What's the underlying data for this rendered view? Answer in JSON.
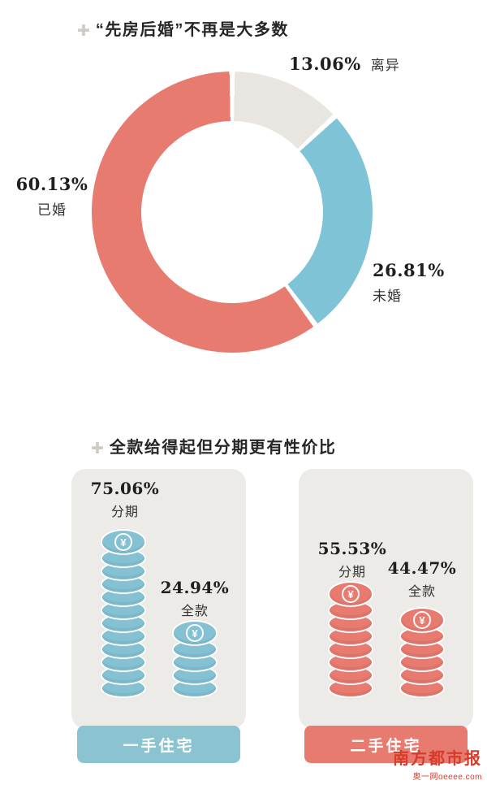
{
  "section1": {
    "plus": "✚",
    "title": "“先房后婚”不再是大多数",
    "segments": [
      {
        "label": "离异",
        "pct": "13.06%",
        "value": 13.06,
        "color": "#e9e6e2"
      },
      {
        "label": "未婚",
        "pct": "26.81%",
        "value": 26.81,
        "color": "#7fc3d6"
      },
      {
        "label": "已婚",
        "pct": "60.13%",
        "value": 60.13,
        "color": "#e87b70"
      }
    ]
  },
  "section2": {
    "plus": "✚",
    "title": "全款给得起但分期更有性价比",
    "coin_symbol": "¥",
    "panels": [
      {
        "label": "一手住宅",
        "color": "#8cc3d1",
        "stacks": [
          {
            "name": "分期",
            "pct": "75.06%",
            "coins": 11,
            "color": "#84c2d3"
          },
          {
            "name": "全款",
            "pct": "24.94%",
            "coins": 4,
            "color": "#84c2d3"
          }
        ]
      },
      {
        "label": "二手住宅",
        "color": "#e87b70",
        "stacks": [
          {
            "name": "分期",
            "pct": "55.53%",
            "coins": 7,
            "color": "#e87b70"
          },
          {
            "name": "全款",
            "pct": "44.47%",
            "coins": 5,
            "color": "#e87b70"
          }
        ]
      }
    ]
  },
  "footer_logo": {
    "name": "南方都市报",
    "sub": "奥一网oeeee.com"
  },
  "chart_data": [
    {
      "type": "pie",
      "title": "“先房后婚”不再是大多数",
      "labels": [
        "已婚",
        "未婚",
        "离异"
      ],
      "values": [
        60.13,
        26.81,
        13.06
      ],
      "colors": [
        "#e87b70",
        "#7fc3d6",
        "#e9e6e2"
      ],
      "donut": true,
      "legend_position": "around-labels"
    },
    {
      "type": "bar",
      "title": "全款给得起但分期更有性价比",
      "categories": [
        "一手住宅",
        "二手住宅"
      ],
      "series": [
        {
          "name": "分期",
          "values": [
            75.06,
            55.53
          ]
        },
        {
          "name": "全款",
          "values": [
            24.94,
            44.47
          ]
        }
      ],
      "unit": "%",
      "ylim": [
        0,
        100
      ],
      "grid": false,
      "style": "coin-stack pictogram"
    }
  ]
}
